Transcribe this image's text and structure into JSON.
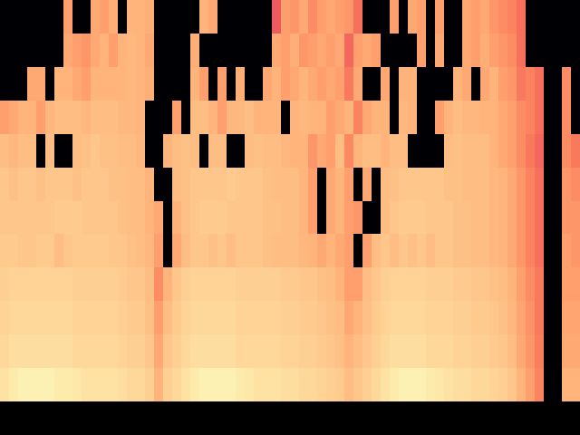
{
  "chart_data": {
    "type": "heatmap",
    "color": "magma",
    "color_range": [
      0,
      1
    ],
    "tick_labels": false,
    "cells": [
      [
        0,
        0,
        0,
        0,
        0,
        0,
        0,
        0.8,
        0,
        0,
        0.82,
        0.8,
        0.83,
        0,
        0.84,
        0.84,
        0.83,
        0,
        0,
        0,
        0,
        0,
        0.84,
        0.82,
        0,
        0,
        0,
        0,
        0,
        0,
        0.65,
        0.8,
        0.78,
        0.82,
        0.76,
        0.8,
        0.82,
        0.8,
        0.78,
        0.7,
        0,
        0,
        0,
        0.8,
        0,
        0.82,
        0.8,
        0,
        0.8,
        0,
        0,
        0.82,
        0.8,
        0.82,
        0.78,
        0.76,
        0.74,
        0.7,
        0,
        0,
        0,
        0,
        0,
        0
      ],
      [
        0,
        0,
        0,
        0,
        0,
        0,
        0,
        0.82,
        0.8,
        0.78,
        0.82,
        0.84,
        0.8,
        0.84,
        0.85,
        0.84,
        0.82,
        0,
        0,
        0,
        0,
        0.83,
        0,
        0,
        0,
        0,
        0,
        0,
        0,
        0,
        0.82,
        0.8,
        0.83,
        0.78,
        0.8,
        0.82,
        0.8,
        0.82,
        0.68,
        0.8,
        0.82,
        0.8,
        0,
        0,
        0,
        0,
        0.8,
        0,
        0.82,
        0,
        0,
        0.82,
        0.8,
        0.83,
        0.8,
        0.78,
        0.76,
        0.7,
        0,
        0,
        0,
        0,
        0,
        0
      ],
      [
        0,
        0,
        0,
        0.82,
        0.82,
        0,
        0.84,
        0.84,
        0.82,
        0.8,
        0.84,
        0.84,
        0.84,
        0.84,
        0.85,
        0.84,
        0.83,
        0,
        0,
        0,
        0,
        0.84,
        0.8,
        0,
        0.8,
        0,
        0.83,
        0,
        0,
        0.82,
        0.84,
        0.8,
        0.82,
        0.84,
        0.82,
        0.8,
        0.82,
        0.8,
        0.72,
        0.82,
        0,
        0,
        0.82,
        0,
        0.84,
        0.84,
        0,
        0,
        0,
        0,
        0.84,
        0.82,
        0,
        0.82,
        0.84,
        0.8,
        0.78,
        0.72,
        0.74,
        0.7,
        0,
        0,
        0.76,
        0
      ],
      [
        0.8,
        0.82,
        0.84,
        0.84,
        0.8,
        0.85,
        0.86,
        0.86,
        0.86,
        0.85,
        0.86,
        0.86,
        0.86,
        0.85,
        0.85,
        0.84,
        0,
        0,
        0,
        0.8,
        0,
        0.86,
        0.86,
        0.84,
        0.8,
        0.85,
        0.85,
        0.86,
        0.84,
        0.84,
        0.84,
        0,
        0.84,
        0.85,
        0.84,
        0.84,
        0.8,
        0.82,
        0.84,
        0.74,
        0.82,
        0.84,
        0.84,
        0,
        0.85,
        0.84,
        0,
        0,
        0.8,
        0.84,
        0.86,
        0.85,
        0.85,
        0.84,
        0.84,
        0.82,
        0.8,
        0.76,
        0.74,
        0.7,
        0,
        0,
        0.76,
        0
      ],
      [
        0.86,
        0.85,
        0.86,
        0.86,
        0,
        0.86,
        0,
        0,
        0.86,
        0.87,
        0.88,
        0.87,
        0.87,
        0.86,
        0.86,
        0.85,
        0,
        0,
        0.84,
        0.86,
        0.87,
        0.86,
        0,
        0.86,
        0.86,
        0,
        0,
        0.86,
        0.87,
        0.86,
        0.86,
        0.85,
        0.84,
        0.84,
        0.78,
        0.82,
        0.8,
        0.86,
        0.75,
        0.84,
        0.86,
        0.86,
        0.84,
        0.86,
        0.86,
        0,
        0,
        0,
        0,
        0.86,
        0.87,
        0.86,
        0.86,
        0.86,
        0.84,
        0.82,
        0.8,
        0.76,
        0.72,
        0.68,
        0,
        0,
        0.76,
        0.72
      ],
      [
        0.88,
        0.87,
        0.88,
        0.88,
        0.87,
        0.88,
        0.88,
        0.88,
        0.87,
        0.88,
        0.88,
        0.88,
        0.87,
        0.87,
        0.86,
        0.86,
        0.84,
        0,
        0,
        0.86,
        0.87,
        0.88,
        0.88,
        0.88,
        0.88,
        0.89,
        0.88,
        0.88,
        0.88,
        0.87,
        0.86,
        0.86,
        0.86,
        0.84,
        0.8,
        0,
        0.82,
        0.84,
        0.8,
        0,
        0.82,
        0,
        0.86,
        0.87,
        0.88,
        0.88,
        0.88,
        0.88,
        0.88,
        0.87,
        0.87,
        0.86,
        0.86,
        0.86,
        0.85,
        0.84,
        0.82,
        0.78,
        0.74,
        0.7,
        0,
        0,
        0.78,
        0.76
      ],
      [
        0.88,
        0.88,
        0.88,
        0.88,
        0.88,
        0.88,
        0.89,
        0.89,
        0.89,
        0.88,
        0.88,
        0.88,
        0.88,
        0.87,
        0.86,
        0.86,
        0.84,
        0.82,
        0,
        0.84,
        0.87,
        0.88,
        0.89,
        0.89,
        0.89,
        0.88,
        0.88,
        0.88,
        0.88,
        0.87,
        0.87,
        0.86,
        0.86,
        0.84,
        0.8,
        0,
        0.82,
        0.84,
        0.8,
        0.78,
        0,
        0,
        0.86,
        0.88,
        0.89,
        0.89,
        0.89,
        0.88,
        0.88,
        0.88,
        0.87,
        0.87,
        0.86,
        0.86,
        0.85,
        0.84,
        0.82,
        0.78,
        0.74,
        0.7,
        0,
        0,
        0.78,
        0.78
      ],
      [
        0.89,
        0.89,
        0.88,
        0.88,
        0.89,
        0.89,
        0.86,
        0.88,
        0.89,
        0.89,
        0.89,
        0.89,
        0.88,
        0.88,
        0.87,
        0.86,
        0.85,
        0.8,
        0,
        0.82,
        0.86,
        0.88,
        0.88,
        0.87,
        0.88,
        0.86,
        0.88,
        0.88,
        0.88,
        0.87,
        0.86,
        0.86,
        0.86,
        0.85,
        0.84,
        0.82,
        0.84,
        0.82,
        0.8,
        0,
        0.8,
        0.86,
        0.88,
        0.86,
        0.88,
        0.87,
        0.88,
        0.86,
        0.88,
        0.88,
        0.87,
        0.87,
        0.86,
        0.86,
        0.85,
        0.84,
        0.82,
        0.78,
        0.74,
        0.7,
        0,
        0,
        0.8,
        0.78
      ],
      [
        0.9,
        0.91,
        0.91,
        0.91,
        0.91,
        0.91,
        0.91,
        0.91,
        0.9,
        0.9,
        0.9,
        0.9,
        0.9,
        0.89,
        0.88,
        0.88,
        0.86,
        0.76,
        0.84,
        0.88,
        0.9,
        0.91,
        0.91,
        0.91,
        0.91,
        0.91,
        0.9,
        0.9,
        0.9,
        0.9,
        0.9,
        0.89,
        0.89,
        0.88,
        0.88,
        0.87,
        0.86,
        0.84,
        0.8,
        0.8,
        0.86,
        0.88,
        0.9,
        0.91,
        0.91,
        0.91,
        0.91,
        0.9,
        0.9,
        0.9,
        0.89,
        0.89,
        0.88,
        0.88,
        0.87,
        0.86,
        0.84,
        0.8,
        0.76,
        0.72,
        0,
        0,
        0.8,
        0.8
      ],
      [
        0.91,
        0.92,
        0.92,
        0.92,
        0.92,
        0.92,
        0.92,
        0.92,
        0.91,
        0.91,
        0.91,
        0.91,
        0.91,
        0.9,
        0.89,
        0.89,
        0.87,
        0.8,
        0.86,
        0.89,
        0.91,
        0.92,
        0.92,
        0.92,
        0.92,
        0.92,
        0.91,
        0.91,
        0.91,
        0.91,
        0.91,
        0.9,
        0.9,
        0.89,
        0.89,
        0.88,
        0.87,
        0.86,
        0.82,
        0.84,
        0.87,
        0.89,
        0.91,
        0.92,
        0.92,
        0.92,
        0.92,
        0.91,
        0.91,
        0.91,
        0.9,
        0.9,
        0.89,
        0.89,
        0.88,
        0.87,
        0.85,
        0.81,
        0.77,
        0.72,
        0,
        0,
        0.81,
        0.81
      ],
      [
        0.92,
        0.93,
        0.93,
        0.93,
        0.93,
        0.93,
        0.93,
        0.93,
        0.92,
        0.92,
        0.92,
        0.92,
        0.92,
        0.91,
        0.9,
        0.9,
        0.88,
        0.82,
        0.88,
        0.9,
        0.92,
        0.93,
        0.93,
        0.93,
        0.93,
        0.93,
        0.92,
        0.92,
        0.92,
        0.92,
        0.92,
        0.91,
        0.91,
        0.9,
        0.9,
        0.89,
        0.88,
        0.87,
        0.84,
        0.86,
        0.88,
        0.9,
        0.92,
        0.93,
        0.93,
        0.93,
        0.93,
        0.92,
        0.92,
        0.92,
        0.91,
        0.91,
        0.9,
        0.9,
        0.89,
        0.88,
        0.86,
        0.82,
        0.78,
        0.73,
        0,
        0,
        0.82,
        0.82
      ],
      [
        0.94,
        0.96,
        0.97,
        0.97,
        0.97,
        0.97,
        0.96,
        0.96,
        0.95,
        0.94,
        0.94,
        0.94,
        0.94,
        0.93,
        0.92,
        0.92,
        0.9,
        0.84,
        0.9,
        0.92,
        0.94,
        0.96,
        0.97,
        0.97,
        0.97,
        0.97,
        0.96,
        0.95,
        0.94,
        0.94,
        0.94,
        0.93,
        0.93,
        0.92,
        0.92,
        0.91,
        0.9,
        0.89,
        0.86,
        0.88,
        0.9,
        0.92,
        0.94,
        0.96,
        0.97,
        0.97,
        0.97,
        0.96,
        0.95,
        0.94,
        0.93,
        0.93,
        0.92,
        0.92,
        0.91,
        0.9,
        0.88,
        0.84,
        0.8,
        0.74,
        0,
        0,
        0.84,
        0.84
      ]
    ]
  }
}
